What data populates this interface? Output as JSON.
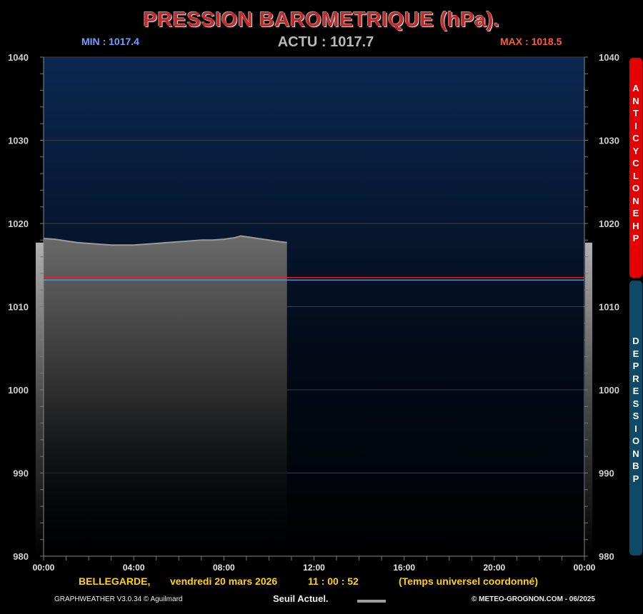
{
  "title": "PRESSION BAROMETRIQUE (hPa).",
  "stats": {
    "min": {
      "label": "MIN",
      "sep": ":",
      "value": "1017.4"
    },
    "actu": {
      "label": "ACTU",
      "sep": ":",
      "value": "1017.7"
    },
    "max": {
      "label": "MAX",
      "sep": ":",
      "value": "1018.5"
    }
  },
  "side_tabs": {
    "hp": "ANTICYCLONE HP",
    "bp": "DEPRESSION BP"
  },
  "footer": {
    "location": "BELLEGARDE,",
    "date": "vendredi 20 mars 2026",
    "time": "11 : 00 : 52",
    "tz": "(Temps universel coordonné)",
    "credit_left": "GRAPHWEATHER V3.0.34 © Aguilmard",
    "seuil_label": "Seuil Actuel.",
    "credit_right": "© METEO-GROGNON.COM - 06/2025"
  },
  "colors": {
    "background": "#000000",
    "plot_top": "#0b2850",
    "area": "#5a5a5a",
    "threshold_red": "#e02020",
    "threshold_blue": "#5a8fd0",
    "hp_tab": "#e50000",
    "bp_tab": "#0e4a68",
    "min_text": "#6fa0ff",
    "max_text": "#ff5a3c",
    "footer_text": "#ffd400"
  },
  "chart_data": {
    "type": "area",
    "x_ticks": [
      "00:00",
      "04:00",
      "08:00",
      "12:00",
      "16:00",
      "20:00",
      "00:00"
    ],
    "y_ticks": [
      1040,
      1030,
      1020,
      1010,
      1000,
      990,
      980
    ],
    "ylim": [
      980,
      1040
    ],
    "xlim_hours": [
      0,
      24
    ],
    "grid": true,
    "series": [
      {
        "x": [
          0,
          0.5,
          1,
          1.5,
          2,
          2.5,
          3,
          3.5,
          4,
          4.5,
          5,
          5.5,
          6,
          6.5,
          7,
          7.5,
          8,
          8.5,
          8.75,
          9,
          9.5,
          10,
          10.5,
          10.8
        ],
        "y": [
          1018.2,
          1018.1,
          1017.9,
          1017.7,
          1017.6,
          1017.5,
          1017.4,
          1017.4,
          1017.4,
          1017.5,
          1017.6,
          1017.7,
          1017.8,
          1017.9,
          1018.0,
          1018.0,
          1018.1,
          1018.3,
          1018.5,
          1018.4,
          1018.2,
          1018.0,
          1017.8,
          1017.7
        ]
      }
    ],
    "thresholds": [
      {
        "value": 1013.5,
        "color": "#e02020"
      },
      {
        "value": 1013.2,
        "color": "#5a8fd0"
      }
    ],
    "current_level": 1017.7
  }
}
